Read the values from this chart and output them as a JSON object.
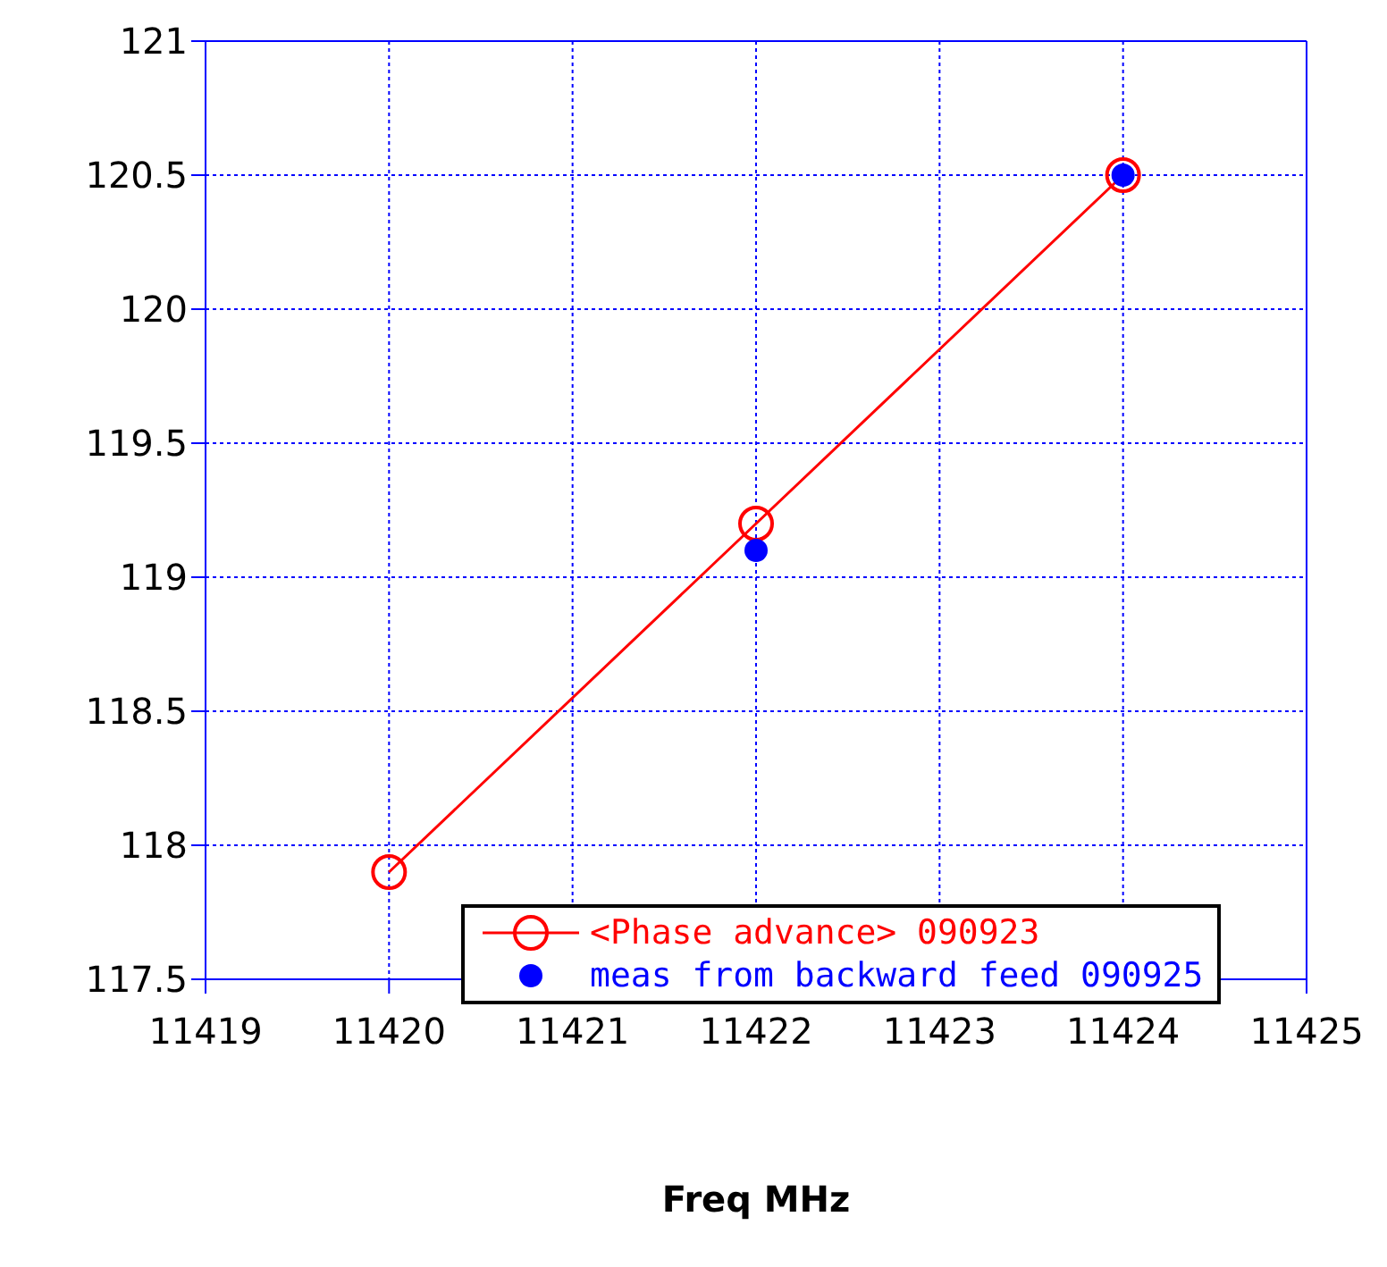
{
  "chart_data": {
    "type": "scatter",
    "xlabel": "Freq  MHz",
    "xlim": [
      11419,
      11425
    ],
    "xticks": [
      11419,
      11420,
      11421,
      11422,
      11423,
      11424,
      11425
    ],
    "ylim": [
      117.5,
      121
    ],
    "yticks": [
      117.5,
      118,
      118.5,
      119,
      119.5,
      120,
      120.5,
      121
    ],
    "grid": true,
    "legend": "bottom right",
    "series": [
      {
        "name": "<Phase advance> 090923",
        "type": "line",
        "marker": "circle",
        "color": "#ff0000",
        "x": [
          11420,
          11422,
          11424
        ],
        "values": [
          117.9,
          119.2,
          120.5
        ]
      },
      {
        "name": "meas from backward feed 090925",
        "type": "scatter",
        "marker": "circle",
        "color": "#0000ff",
        "x": [
          11422,
          11424
        ],
        "values": [
          119.1,
          120.5
        ]
      }
    ]
  }
}
